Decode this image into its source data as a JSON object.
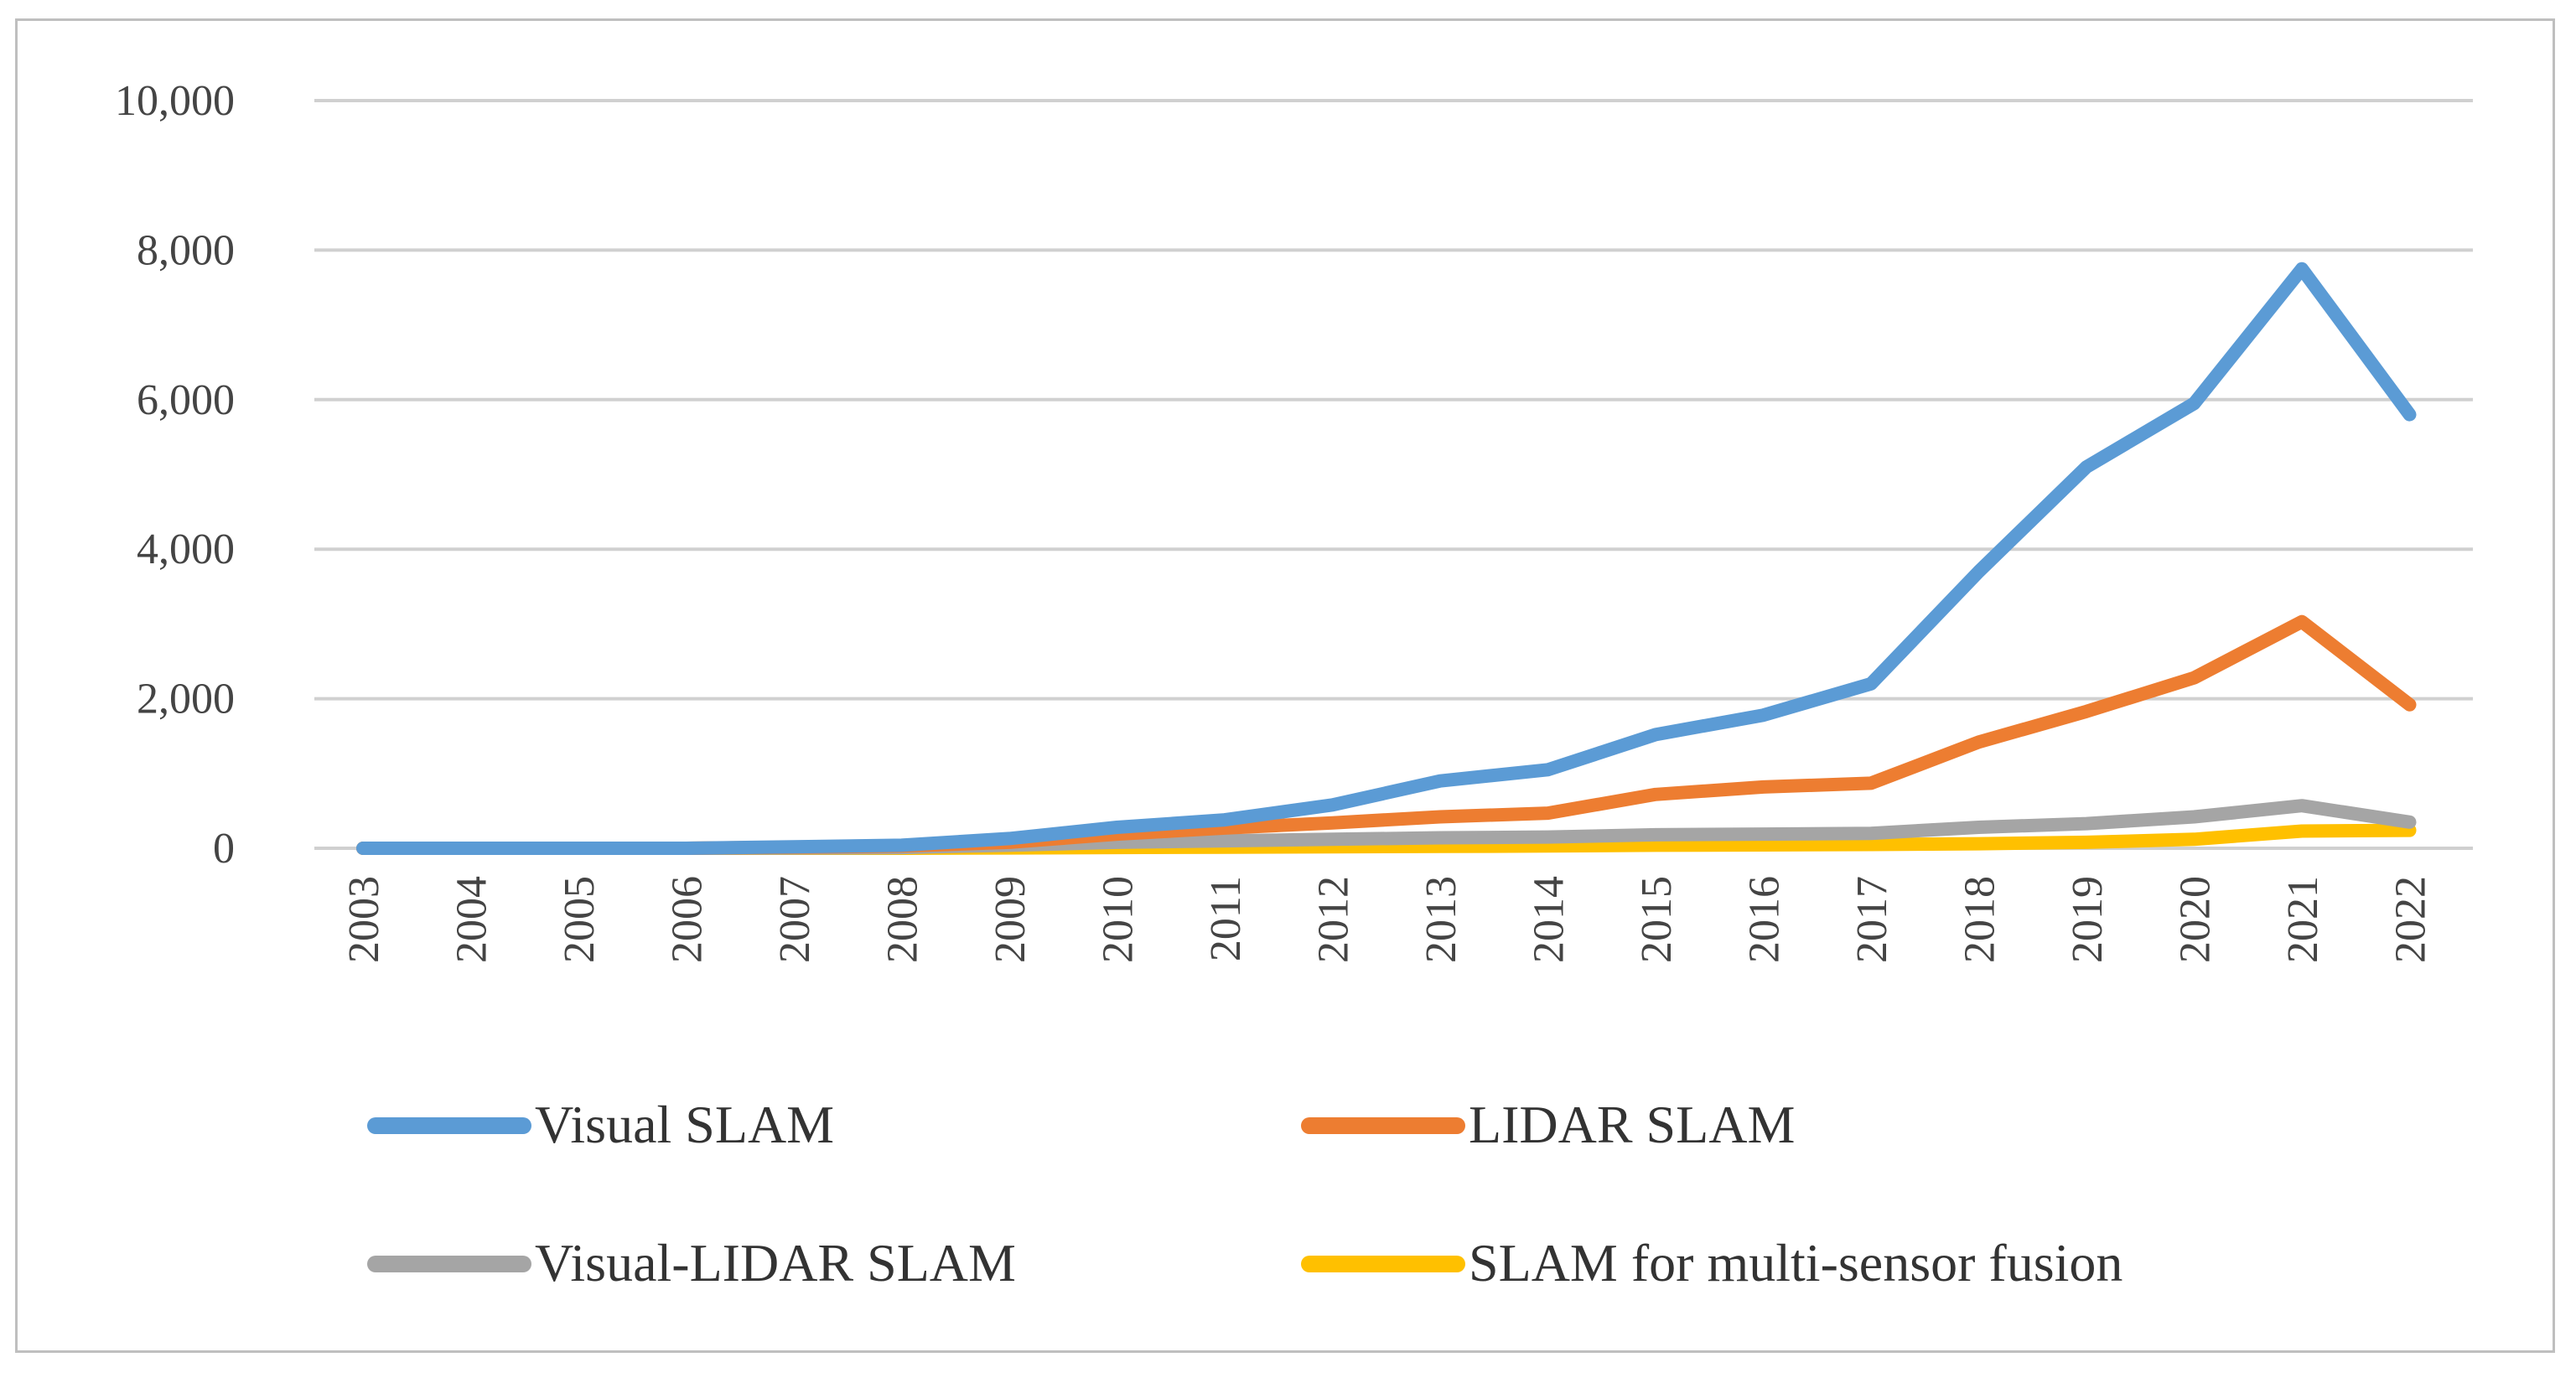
{
  "chart_data": {
    "type": "line",
    "title": "",
    "xlabel": "",
    "ylabel": "",
    "ylim": [
      0,
      10000
    ],
    "y_ticks": [
      {
        "value": 0,
        "label": "0"
      },
      {
        "value": 2000,
        "label": "2,000"
      },
      {
        "value": 4000,
        "label": "4,000"
      },
      {
        "value": 6000,
        "label": "6,000"
      },
      {
        "value": 8000,
        "label": "8,000"
      },
      {
        "value": 10000,
        "label": "10,000"
      }
    ],
    "grid": true,
    "legend_position": "bottom",
    "categories": [
      "2003",
      "2004",
      "2005",
      "2006",
      "2007",
      "2008",
      "2009",
      "2010",
      "2011",
      "2012",
      "2013",
      "2014",
      "2015",
      "2016",
      "2017",
      "2018",
      "2019",
      "2020",
      "2021",
      "2022"
    ],
    "series": [
      {
        "name": "Visual SLAM",
        "color": "#5b9bd5",
        "values": [
          0,
          0,
          0,
          0,
          20,
          40,
          130,
          280,
          380,
          580,
          900,
          1050,
          1520,
          1780,
          2200,
          3700,
          5100,
          5950,
          7750,
          5800
        ]
      },
      {
        "name": "LIDAR SLAM",
        "color": "#ed7d31",
        "values": [
          0,
          0,
          0,
          0,
          15,
          30,
          80,
          190,
          270,
          340,
          420,
          470,
          720,
          820,
          870,
          1420,
          1830,
          2280,
          3030,
          1920
        ]
      },
      {
        "name": "Visual-LIDAR SLAM",
        "color": "#a5a5a5",
        "values": [
          0,
          0,
          0,
          0,
          5,
          10,
          40,
          80,
          100,
          120,
          140,
          150,
          180,
          190,
          200,
          280,
          330,
          420,
          570,
          350
        ]
      },
      {
        "name": "SLAM for multi-sensor fusion",
        "color": "#ffc000",
        "values": [
          0,
          0,
          0,
          0,
          0,
          0,
          5,
          10,
          15,
          20,
          25,
          30,
          40,
          45,
          50,
          60,
          80,
          120,
          230,
          240
        ]
      }
    ]
  }
}
